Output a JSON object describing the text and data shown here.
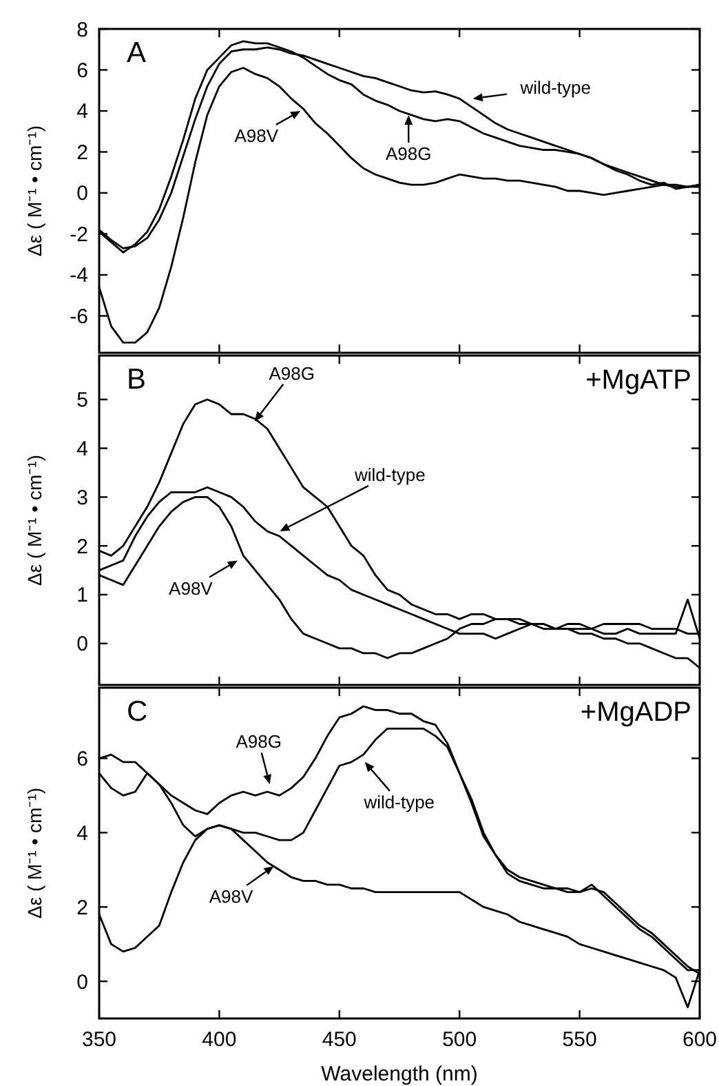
{
  "chart_data": [
    {
      "type": "line",
      "title": "A",
      "ylabel": "Δε ( M⁻¹ • cm⁻¹)",
      "xlim": [
        350,
        600
      ],
      "xticks": [
        350,
        400,
        450,
        500,
        550,
        600
      ],
      "ylim": [
        -7.8,
        8
      ],
      "yticks": [
        -6,
        -4,
        -2,
        0,
        2,
        4,
        6,
        8
      ],
      "tick_labels": "y",
      "grid": false,
      "x": [
        350,
        355,
        360,
        365,
        370,
        375,
        380,
        385,
        390,
        395,
        400,
        405,
        410,
        415,
        420,
        425,
        430,
        435,
        440,
        445,
        450,
        455,
        460,
        465,
        470,
        475,
        480,
        485,
        490,
        495,
        500,
        505,
        510,
        515,
        520,
        525,
        530,
        535,
        540,
        545,
        550,
        555,
        560,
        565,
        570,
        575,
        580,
        585,
        590,
        595,
        600
      ],
      "series": [
        {
          "color": "#000000",
          "values": [
            -1.8,
            -2.3,
            -2.7,
            -2.6,
            -2.2,
            -1.3,
            0.0,
            1.8,
            3.6,
            5.2,
            6.3,
            6.9,
            7.0,
            7.0,
            7.1,
            7.0,
            6.8,
            6.7,
            6.5,
            6.3,
            6.1,
            5.9,
            5.7,
            5.6,
            5.4,
            5.2,
            5.0,
            4.9,
            4.95,
            4.8,
            4.6,
            4.2,
            3.8,
            3.4,
            3.1,
            2.9,
            2.7,
            2.5,
            2.3,
            2.1,
            1.9,
            1.7,
            1.4,
            1.2,
            1.0,
            0.8,
            0.6,
            0.4,
            0.3,
            0.3,
            0.3
          ]
        },
        {
          "color": "#000000",
          "values": [
            -1.9,
            -2.4,
            -2.9,
            -2.5,
            -1.9,
            -0.8,
            0.8,
            2.6,
            4.6,
            6.0,
            6.6,
            7.2,
            7.4,
            7.3,
            7.3,
            7.1,
            6.9,
            6.6,
            6.2,
            5.8,
            5.5,
            5.3,
            4.8,
            4.5,
            4.3,
            4.0,
            3.8,
            3.6,
            3.5,
            3.6,
            3.5,
            3.2,
            2.9,
            2.7,
            2.5,
            2.3,
            2.2,
            2.1,
            2.1,
            2.0,
            1.9,
            1.7,
            1.4,
            1.1,
            0.9,
            0.6,
            0.4,
            0.5,
            0.2,
            0.3,
            0.4
          ]
        },
        {
          "color": "#000000",
          "values": [
            -4.6,
            -6.5,
            -7.3,
            -7.3,
            -6.8,
            -5.6,
            -3.6,
            -1.2,
            1.5,
            3.8,
            5.2,
            5.9,
            6.1,
            5.8,
            5.6,
            5.2,
            4.6,
            4.1,
            3.4,
            2.9,
            2.3,
            1.7,
            1.2,
            0.9,
            0.7,
            0.5,
            0.4,
            0.4,
            0.5,
            0.7,
            0.9,
            0.8,
            0.7,
            0.7,
            0.6,
            0.6,
            0.5,
            0.4,
            0.3,
            0.1,
            0.1,
            0.0,
            -0.1,
            0.0,
            0.1,
            0.2,
            0.3,
            0.4,
            0.4,
            0.3,
            0.4
          ]
        }
      ],
      "annotations": [
        {
          "text": "wild-type",
          "x": 505.6,
          "y": 4.6
        },
        {
          "text": "A98G",
          "x": 478.8,
          "y": 3.8
        },
        {
          "text": "A98V",
          "x": 433.8,
          "y": 4.0
        }
      ]
    },
    {
      "type": "line",
      "title": "B",
      "subtitle": "+MgATP",
      "ylabel": "Δε ( M⁻¹ • cm⁻¹)",
      "xlim": [
        350,
        600
      ],
      "xticks": [
        350,
        400,
        450,
        500,
        550,
        600
      ],
      "ylim": [
        -0.85,
        5.9
      ],
      "yticks": [
        0,
        1,
        2,
        3,
        4,
        5
      ],
      "tick_labels": "y",
      "grid": false,
      "x": [
        350,
        355,
        360,
        365,
        370,
        375,
        380,
        385,
        390,
        395,
        400,
        405,
        410,
        415,
        420,
        425,
        430,
        435,
        440,
        445,
        450,
        455,
        460,
        465,
        470,
        475,
        480,
        485,
        490,
        495,
        500,
        505,
        510,
        515,
        520,
        525,
        530,
        535,
        540,
        545,
        550,
        555,
        560,
        565,
        570,
        575,
        580,
        585,
        590,
        595,
        600
      ],
      "series": [
        {
          "color": "#000000",
          "values": [
            1.9,
            1.8,
            2.0,
            2.4,
            2.8,
            3.3,
            3.9,
            4.5,
            4.9,
            5.0,
            4.9,
            4.7,
            4.7,
            4.6,
            4.4,
            4.0,
            3.6,
            3.2,
            3.0,
            2.8,
            2.4,
            2.0,
            1.8,
            1.4,
            1.1,
            1.0,
            0.8,
            0.7,
            0.6,
            0.6,
            0.5,
            0.6,
            0.6,
            0.5,
            0.5,
            0.4,
            0.4,
            0.3,
            0.3,
            0.3,
            0.3,
            0.3,
            0.2,
            0.2,
            0.3,
            0.2,
            0.2,
            0.2,
            0.2,
            0.9,
            0.1
          ]
        },
        {
          "color": "#000000",
          "values": [
            1.5,
            1.6,
            1.7,
            2.2,
            2.6,
            2.9,
            3.1,
            3.1,
            3.1,
            3.2,
            3.1,
            3.0,
            2.8,
            2.5,
            2.3,
            2.2,
            2.0,
            1.8,
            1.6,
            1.4,
            1.3,
            1.1,
            1.0,
            0.9,
            0.8,
            0.7,
            0.6,
            0.5,
            0.4,
            0.3,
            0.2,
            0.2,
            0.2,
            0.1,
            0.2,
            0.3,
            0.4,
            0.4,
            0.3,
            0.4,
            0.4,
            0.3,
            0.4,
            0.4,
            0.4,
            0.4,
            0.3,
            0.3,
            0.3,
            0.2,
            0.2
          ]
        },
        {
          "color": "#000000",
          "values": [
            1.4,
            1.3,
            1.2,
            1.6,
            2.0,
            2.4,
            2.7,
            2.9,
            3.0,
            3.0,
            2.8,
            2.4,
            1.8,
            1.5,
            1.2,
            0.9,
            0.5,
            0.2,
            0.1,
            0.0,
            -0.1,
            -0.1,
            -0.2,
            -0.2,
            -0.3,
            -0.2,
            -0.2,
            -0.1,
            0.0,
            0.1,
            0.3,
            0.4,
            0.4,
            0.5,
            0.5,
            0.5,
            0.4,
            0.4,
            0.3,
            0.3,
            0.2,
            0.2,
            0.1,
            0.1,
            0.0,
            0.0,
            -0.1,
            -0.2,
            -0.3,
            -0.3,
            -0.5
          ]
        }
      ],
      "annotations": [
        {
          "text": "A98G",
          "x": 414.7,
          "y": 4.55
        },
        {
          "text": "wild-type",
          "x": 425.2,
          "y": 2.3
        },
        {
          "text": "A98V",
          "x": 407.6,
          "y": 1.7
        }
      ]
    },
    {
      "type": "line",
      "title": "C",
      "subtitle": "+MgADP",
      "xlabel": "Wavelength (nm)",
      "ylabel": "Δε ( M⁻¹ • cm⁻¹)",
      "xlim": [
        350,
        600
      ],
      "xticks": [
        350,
        400,
        450,
        500,
        550,
        600
      ],
      "ylim": [
        -1,
        7.9
      ],
      "yticks": [
        0,
        2,
        4,
        6
      ],
      "grid": false,
      "x": [
        350,
        355,
        360,
        365,
        370,
        375,
        380,
        385,
        390,
        395,
        400,
        405,
        410,
        415,
        420,
        425,
        430,
        435,
        440,
        445,
        450,
        455,
        460,
        465,
        470,
        475,
        480,
        485,
        490,
        495,
        500,
        505,
        510,
        515,
        520,
        525,
        530,
        535,
        540,
        545,
        550,
        555,
        560,
        565,
        570,
        575,
        580,
        585,
        590,
        595,
        600
      ],
      "series": [
        {
          "color": "#000000",
          "values": [
            6.0,
            6.1,
            5.9,
            5.9,
            5.6,
            5.3,
            5.0,
            4.8,
            4.6,
            4.5,
            4.8,
            5.0,
            5.1,
            5.0,
            5.1,
            5.0,
            5.2,
            5.5,
            6.0,
            6.6,
            7.1,
            7.2,
            7.4,
            7.3,
            7.3,
            7.2,
            7.2,
            7.0,
            6.9,
            6.4,
            5.6,
            4.9,
            4.0,
            3.4,
            3.0,
            2.8,
            2.7,
            2.6,
            2.5,
            2.5,
            2.4,
            2.5,
            2.4,
            2.1,
            1.8,
            1.5,
            1.3,
            1.0,
            0.7,
            0.4,
            0.2
          ]
        },
        {
          "color": "#000000",
          "values": [
            5.6,
            5.2,
            5.0,
            5.1,
            5.6,
            5.3,
            4.8,
            4.2,
            3.9,
            4.1,
            4.2,
            4.1,
            4.0,
            4.0,
            3.9,
            3.8,
            3.8,
            4.0,
            4.6,
            5.2,
            5.8,
            5.9,
            6.1,
            6.5,
            6.8,
            6.8,
            6.8,
            6.8,
            6.6,
            6.3,
            5.6,
            4.8,
            3.9,
            3.4,
            2.9,
            2.7,
            2.6,
            2.5,
            2.5,
            2.4,
            2.4,
            2.6,
            2.3,
            2.0,
            1.7,
            1.4,
            1.2,
            0.9,
            0.6,
            0.3,
            0.3
          ]
        },
        {
          "color": "#000000",
          "values": [
            1.8,
            1.0,
            0.8,
            0.9,
            1.2,
            1.5,
            2.4,
            3.2,
            3.8,
            4.1,
            4.2,
            4.1,
            3.8,
            3.5,
            3.2,
            3.0,
            2.8,
            2.7,
            2.7,
            2.6,
            2.6,
            2.5,
            2.5,
            2.4,
            2.4,
            2.4,
            2.4,
            2.4,
            2.4,
            2.4,
            2.4,
            2.2,
            2.0,
            1.9,
            1.8,
            1.6,
            1.5,
            1.4,
            1.3,
            1.2,
            1.0,
            0.9,
            0.8,
            0.7,
            0.6,
            0.5,
            0.4,
            0.3,
            0.1,
            -0.7,
            0.3
          ]
        }
      ],
      "annotations": [
        {
          "text": "A98G",
          "x": 421,
          "y": 5.3
        },
        {
          "text": "wild-type",
          "x": 460.6,
          "y": 5.9
        },
        {
          "text": "A98V",
          "x": 422.7,
          "y": 3.1
        }
      ]
    }
  ]
}
